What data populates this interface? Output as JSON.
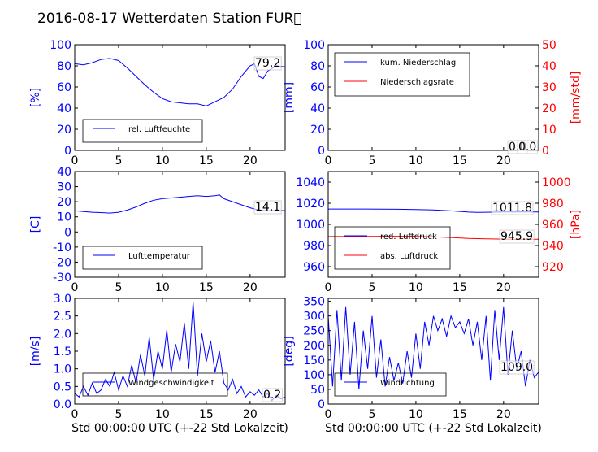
{
  "page": {
    "title": "2016-08-17 Wetterdaten Station FUR\u0000"
  },
  "colors": {
    "primary": "#0000ff",
    "secondary": "#ff0000",
    "axis": "#000000"
  },
  "chart_data": [
    {
      "id": "humidity",
      "type": "line",
      "xlim": [
        0,
        24
      ],
      "xticks": [
        0,
        5,
        10,
        15,
        20
      ],
      "ylim": [
        0,
        100
      ],
      "yticks": [
        0,
        20,
        40,
        60,
        80,
        100
      ],
      "ylabel": "[%]",
      "xlabel": "",
      "grid": false,
      "legend": {
        "placement": "lower-left"
      },
      "annotation": "79.2",
      "series": [
        {
          "name": "rel. Luftfeuchte",
          "color": "#0000ff",
          "x": [
            0,
            1,
            2,
            3,
            4,
            5,
            6,
            7,
            8,
            9,
            10,
            11,
            12,
            13,
            14,
            15,
            16,
            17,
            18,
            19,
            20,
            20.5,
            21,
            21.5,
            22,
            23,
            24
          ],
          "y": [
            82,
            81,
            83,
            86,
            87,
            85,
            78,
            70,
            62,
            55,
            49,
            46,
            45,
            44,
            44,
            42,
            46,
            50,
            58,
            70,
            80,
            82,
            70,
            68,
            75,
            80,
            79
          ]
        }
      ]
    },
    {
      "id": "precipitation",
      "type": "line",
      "xlim": [
        0,
        24
      ],
      "xticks": [
        0,
        5,
        10,
        15,
        20
      ],
      "ylim": [
        0,
        100
      ],
      "yticks": [
        0,
        20,
        40,
        60,
        80,
        100
      ],
      "ylabel": "[mm]",
      "y2lim": [
        0,
        50
      ],
      "y2ticks": [
        0,
        10,
        20,
        30,
        40,
        50
      ],
      "y2label": "[mm/std]",
      "xlabel": "",
      "grid": false,
      "legend": {
        "placement": "top-left"
      },
      "annotation": "0.0",
      "annotation2": "0.0",
      "series": [
        {
          "name": "kum. Niederschlag",
          "color": "#0000ff",
          "axis": "left",
          "x": [
            0,
            24
          ],
          "y": [
            0,
            0
          ]
        },
        {
          "name": "Niederschlagsrate",
          "color": "#ff0000",
          "axis": "right",
          "x": [
            0,
            24
          ],
          "y": [
            0,
            0
          ]
        }
      ]
    },
    {
      "id": "temperature",
      "type": "line",
      "xlim": [
        0,
        24
      ],
      "xticks": [
        0,
        5,
        10,
        15,
        20
      ],
      "ylim": [
        -30,
        40
      ],
      "yticks": [
        -30,
        -20,
        -10,
        0,
        10,
        20,
        30,
        40
      ],
      "ylabel": "[C]",
      "xlabel": "",
      "grid": false,
      "legend": {
        "placement": "lower-left"
      },
      "annotation": "14.1",
      "series": [
        {
          "name": "Lufttemperatur",
          "color": "#0000ff",
          "x": [
            0,
            1,
            2,
            3,
            4,
            5,
            6,
            7,
            8,
            9,
            10,
            11,
            12,
            13,
            14,
            15,
            16,
            16.5,
            17,
            18,
            19,
            20,
            21,
            22,
            23,
            24
          ],
          "y": [
            14,
            13.5,
            13,
            12.8,
            12.5,
            13,
            14.5,
            16.5,
            19,
            21,
            22,
            22.5,
            23,
            23.5,
            24,
            23.5,
            24,
            24.5,
            22,
            20,
            18,
            16,
            14.5,
            14,
            14.2,
            14.1
          ]
        }
      ]
    },
    {
      "id": "pressure",
      "type": "line",
      "xlim": [
        0,
        24
      ],
      "xticks": [
        0,
        5,
        10,
        15,
        20
      ],
      "ylim": [
        950,
        1050
      ],
      "yticks": [
        960,
        980,
        1000,
        1020,
        1040
      ],
      "ylabel": "",
      "y2lim": [
        910,
        1010
      ],
      "y2ticks": [
        920,
        940,
        960,
        980,
        1000
      ],
      "y2label": "[hPa]",
      "xlabel": "",
      "grid": false,
      "legend": {
        "placement": "lower-left"
      },
      "annotation": "1011.8",
      "annotation2": "945.9",
      "series": [
        {
          "name": "red. Luftdruck",
          "color": "#0000ff",
          "axis": "left",
          "x": [
            0,
            4,
            8,
            10,
            12,
            14,
            16,
            17,
            18,
            20,
            22,
            24
          ],
          "y": [
            1014.5,
            1014.5,
            1014.3,
            1014,
            1013.6,
            1012.8,
            1011.6,
            1011.4,
            1011.5,
            1011.7,
            1011.8,
            1011.8
          ]
        },
        {
          "name": "abs. Luftdruck",
          "color": "#ff0000",
          "axis": "right",
          "x": [
            0,
            4,
            8,
            10,
            12,
            14,
            16,
            18,
            20,
            22,
            24
          ],
          "y": [
            948.5,
            948.6,
            948.8,
            948.7,
            948.3,
            947.6,
            946.8,
            946.4,
            946.1,
            945.9,
            945.9
          ]
        }
      ]
    },
    {
      "id": "windspeed",
      "type": "line",
      "xlim": [
        0,
        24
      ],
      "xticks": [
        0,
        5,
        10,
        15,
        20
      ],
      "ylim": [
        0,
        3.0
      ],
      "yticks": [
        0.0,
        0.5,
        1.0,
        1.5,
        2.0,
        2.5,
        3.0
      ],
      "ylabel": "[m/s]",
      "xlabel": "Std 00:00:00 UTC (+-22 Std Lokalzeit)",
      "grid": false,
      "legend": {
        "placement": "lower-left"
      },
      "annotation": "0.2",
      "series": [
        {
          "name": "Windgeschwindigkeit",
          "color": "#0000ff",
          "x": [
            0,
            0.5,
            1,
            1.5,
            2,
            2.5,
            3,
            3.5,
            4,
            4.5,
            5,
            5.5,
            6,
            6.5,
            7,
            7.5,
            8,
            8.5,
            9,
            9.5,
            10,
            10.5,
            11,
            11.5,
            12,
            12.5,
            13,
            13.5,
            14,
            14.5,
            15,
            15.5,
            16,
            16.5,
            17,
            17.5,
            18,
            18.5,
            19,
            19.5,
            20,
            20.5,
            21,
            21.5,
            22,
            22.5,
            23,
            23.5,
            24
          ],
          "y": [
            0.3,
            0.2,
            0.5,
            0.25,
            0.6,
            0.3,
            0.4,
            0.7,
            0.5,
            0.9,
            0.4,
            0.8,
            0.5,
            1.1,
            0.6,
            1.4,
            0.8,
            1.9,
            0.7,
            1.5,
            1.0,
            2.1,
            0.9,
            1.7,
            1.2,
            2.3,
            1.0,
            2.9,
            0.8,
            2.0,
            1.2,
            1.8,
            0.9,
            1.5,
            0.6,
            0.4,
            0.7,
            0.3,
            0.5,
            0.2,
            0.35,
            0.25,
            0.4,
            0.2,
            0.3,
            0.1,
            0.25,
            0.15,
            0.2
          ]
        }
      ]
    },
    {
      "id": "winddirection",
      "type": "line",
      "xlim": [
        0,
        24
      ],
      "xticks": [
        0,
        5,
        10,
        15,
        20
      ],
      "ylim": [
        0,
        360
      ],
      "yticks": [
        0,
        50,
        100,
        150,
        200,
        250,
        300,
        350
      ],
      "ylabel": "[deg]",
      "xlabel": "Std 00:00:00 UTC (+-22 Std Lokalzeit)",
      "grid": false,
      "legend": {
        "placement": "lower-left"
      },
      "annotation": "109.0",
      "series": [
        {
          "name": "Windrichtung",
          "color": "#0000ff",
          "x": [
            0,
            0.5,
            1,
            1.5,
            2,
            2.5,
            3,
            3.5,
            4,
            4.5,
            5,
            5.5,
            6,
            6.5,
            7,
            7.5,
            8,
            8.5,
            9,
            9.5,
            10,
            10.5,
            11,
            11.5,
            12,
            12.5,
            13,
            13.5,
            14,
            14.5,
            15,
            15.5,
            16,
            16.5,
            17,
            17.5,
            18,
            18.5,
            19,
            19.5,
            20,
            20.5,
            21,
            21.5,
            22,
            22.5,
            23,
            23.5,
            24
          ],
          "y": [
            300,
            60,
            320,
            80,
            330,
            100,
            280,
            50,
            250,
            120,
            300,
            90,
            220,
            60,
            160,
            80,
            140,
            70,
            180,
            90,
            240,
            120,
            280,
            200,
            300,
            250,
            290,
            230,
            300,
            260,
            280,
            240,
            290,
            200,
            280,
            150,
            300,
            80,
            320,
            150,
            330,
            100,
            250,
            120,
            180,
            60,
            150,
            90,
            109
          ]
        }
      ]
    }
  ]
}
